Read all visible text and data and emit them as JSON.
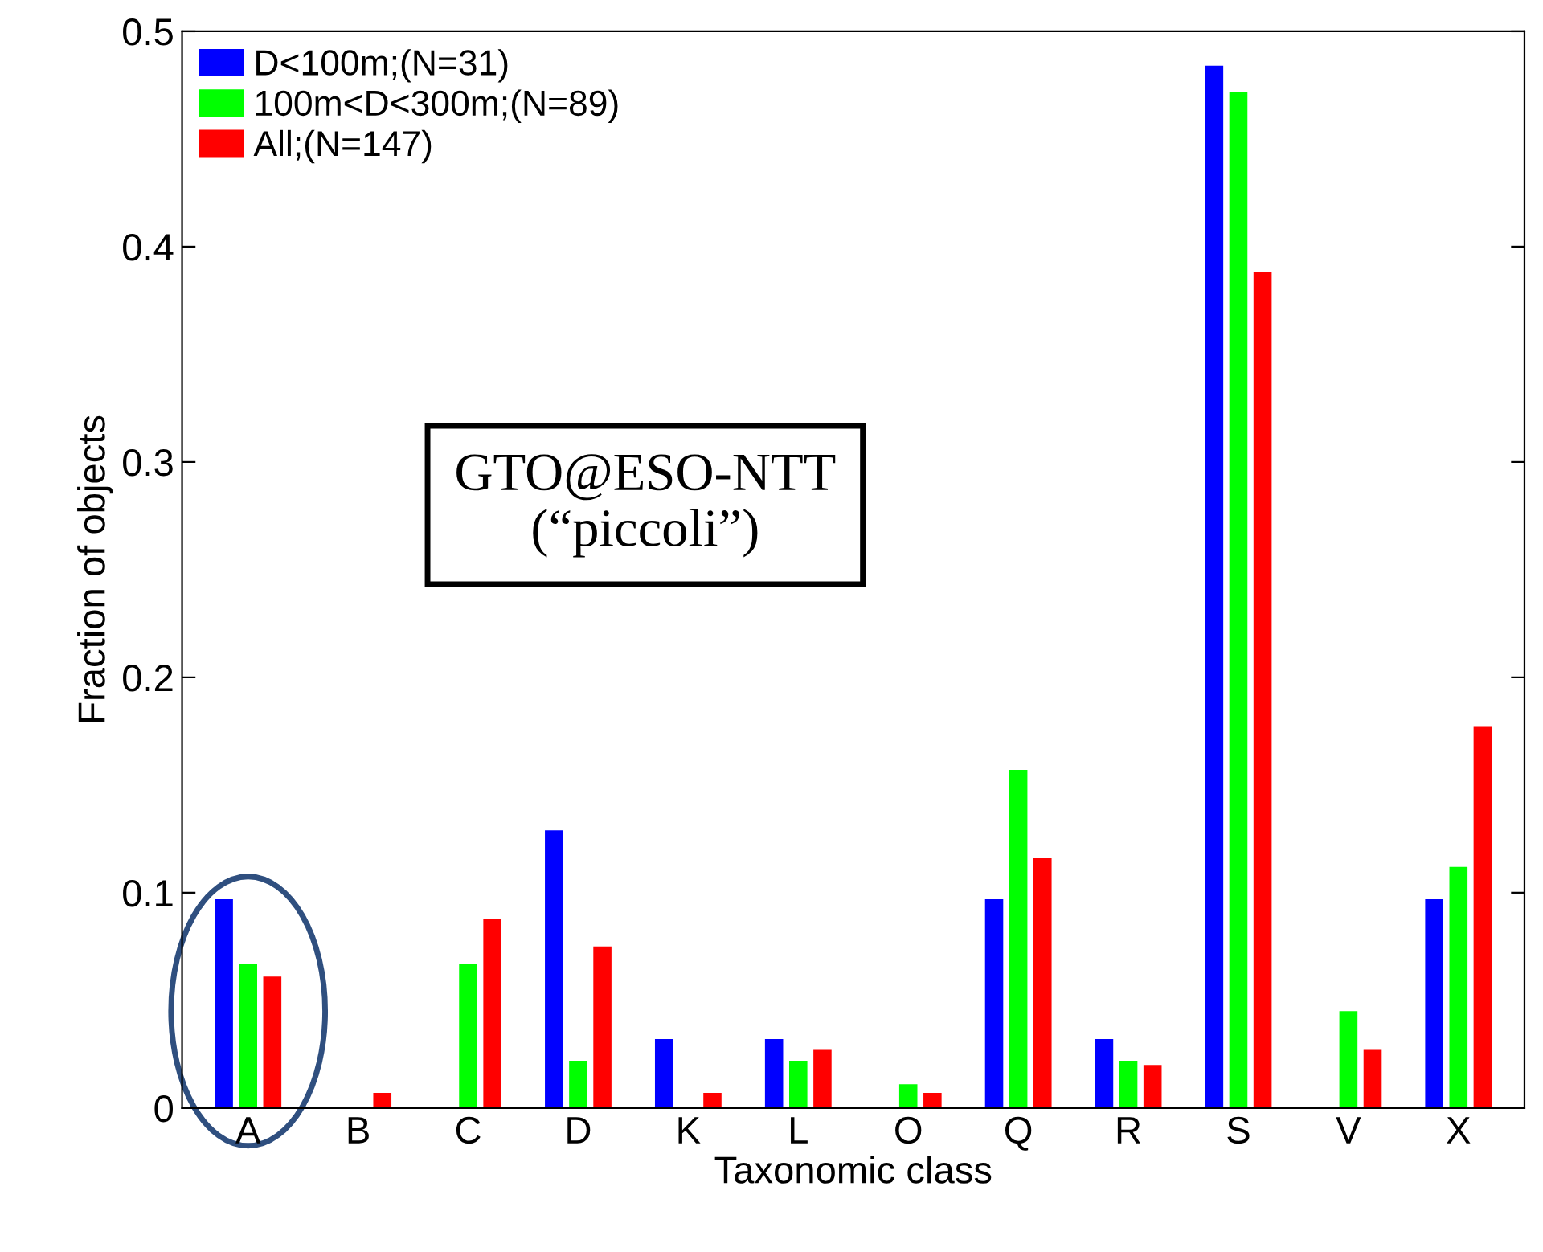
{
  "chart_data": {
    "type": "bar",
    "xlabel": "Taxonomic class",
    "ylabel": "Fraction of objects",
    "categories": [
      "A",
      "B",
      "C",
      "D",
      "K",
      "L",
      "O",
      "Q",
      "R",
      "S",
      "V",
      "X"
    ],
    "series": [
      {
        "name": "D<100m;(N=31)",
        "color": "#0000ff",
        "values": [
          0.097,
          0,
          0,
          0.129,
          0.032,
          0.032,
          0,
          0.097,
          0.032,
          0.484,
          0,
          0.097
        ]
      },
      {
        "name": "100m<D<300m;(N=89)",
        "color": "#00ff00",
        "values": [
          0.067,
          0,
          0.067,
          0.022,
          0,
          0.022,
          0.011,
          0.157,
          0.022,
          0.472,
          0.045,
          0.112
        ]
      },
      {
        "name": "All;(N=147)",
        "color": "#ff0000",
        "values": [
          0.061,
          0.007,
          0.088,
          0.075,
          0.007,
          0.027,
          0.007,
          0.116,
          0.02,
          0.388,
          0.027,
          0.177
        ]
      }
    ],
    "ylim": [
      0,
      0.5
    ],
    "yticks": [
      0,
      0.1,
      0.2,
      0.3,
      0.4,
      0.5
    ],
    "grid": false,
    "legend": "top left",
    "annotations": [
      "GTO@ESO-NTT\n(“piccoli”)"
    ]
  }
}
